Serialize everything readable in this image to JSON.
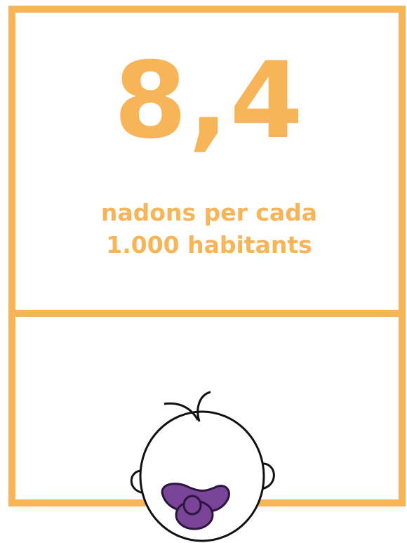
{
  "figure": {
    "value": "8,4",
    "caption_lines": [
      "nadons per cada",
      "1.000 habitants"
    ]
  }
}
